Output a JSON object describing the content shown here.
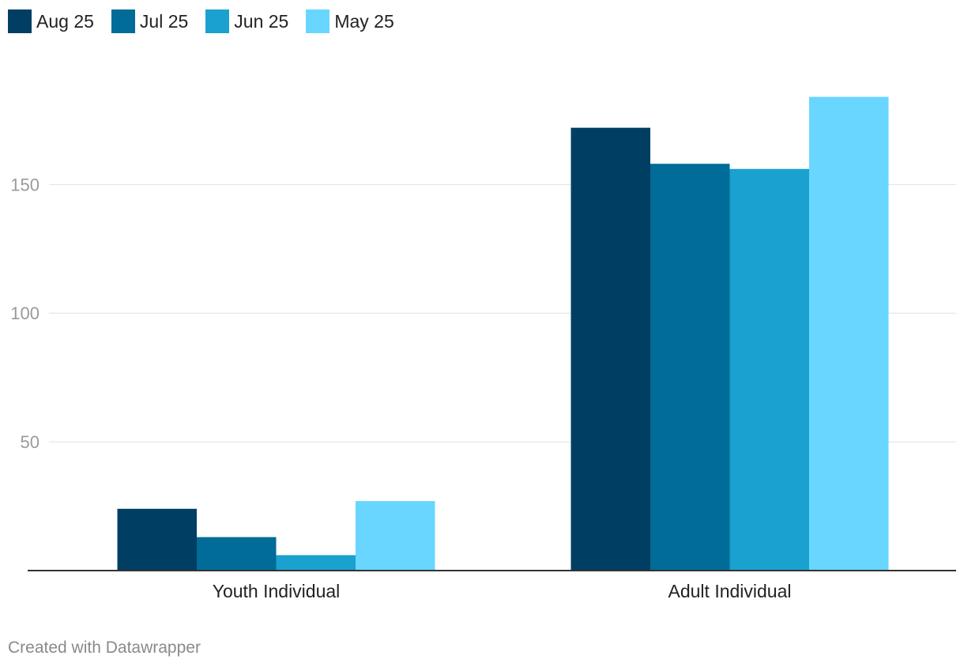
{
  "chart_data": {
    "type": "bar",
    "categories": [
      "Youth Individual",
      "Adult Individual"
    ],
    "series": [
      {
        "name": "Aug 25",
        "color": "#003f63",
        "values": [
          24,
          172
        ]
      },
      {
        "name": "Jul 25",
        "color": "#006c97",
        "values": [
          13,
          158
        ]
      },
      {
        "name": "Jun 25",
        "color": "#1aa1cf",
        "values": [
          6,
          156
        ]
      },
      {
        "name": "May 25",
        "color": "#68d6ff",
        "values": [
          27,
          184
        ]
      }
    ],
    "yticks": [
      50,
      100,
      150
    ],
    "ylim": [
      0,
      190
    ],
    "grid": true,
    "legend": "top-left",
    "xlabel": "",
    "ylabel": ""
  },
  "footer": {
    "credit": "Created with Datawrapper"
  }
}
